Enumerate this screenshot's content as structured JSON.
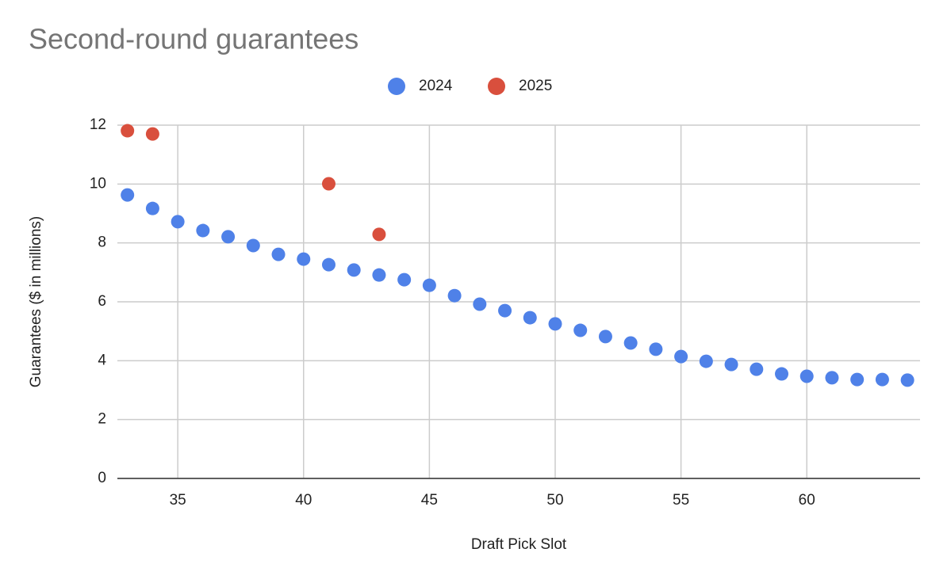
{
  "chart_data": {
    "type": "scatter",
    "title": "Second-round guarantees",
    "x_label": "Draft Pick Slot",
    "y_label": "Guarantees ($ in millions)",
    "series": [
      {
        "name": "2024",
        "color": "#4f81e8",
        "x": [
          33,
          34,
          35,
          36,
          37,
          38,
          39,
          40,
          41,
          42,
          43,
          44,
          45,
          46,
          47,
          48,
          49,
          50,
          51,
          52,
          53,
          54,
          55,
          56,
          57,
          58,
          59,
          60,
          61,
          62,
          63,
          64
        ],
        "values": [
          9.63,
          9.17,
          8.72,
          8.42,
          8.21,
          7.91,
          7.61,
          7.45,
          7.26,
          7.08,
          6.91,
          6.75,
          6.56,
          6.21,
          5.92,
          5.7,
          5.46,
          5.25,
          5.03,
          4.82,
          4.6,
          4.39,
          4.14,
          3.98,
          3.87,
          3.71,
          3.55,
          3.47,
          3.42,
          3.36,
          3.36,
          3.34
        ]
      },
      {
        "name": "2025",
        "color": "#d94f3d",
        "x": [
          33,
          34,
          41,
          43
        ],
        "values": [
          11.81,
          11.7,
          10.01,
          8.29
        ]
      }
    ],
    "xlim": [
      32.6,
      64.5
    ],
    "xticks": [
      35,
      40,
      45,
      50,
      55,
      60
    ],
    "ylim": [
      0,
      12
    ],
    "yticks": [
      0,
      2,
      4,
      6,
      8,
      10,
      12
    ],
    "grid": true,
    "legend": "top"
  }
}
